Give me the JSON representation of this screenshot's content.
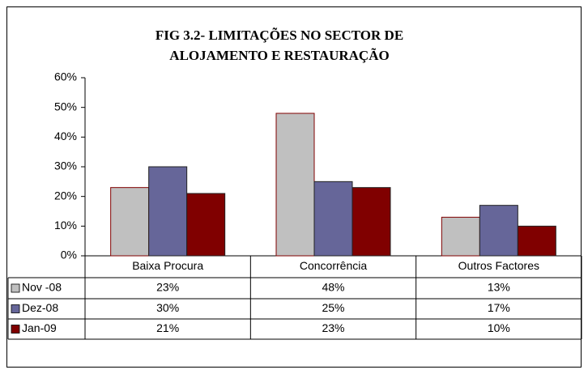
{
  "chart_data": {
    "type": "bar",
    "title": [
      "FIG 3.2- LIMITAÇÕES NO SECTOR DE",
      "ALOJAMENTO E RESTAURAÇÃO"
    ],
    "categories": [
      "Baixa Procura",
      "Concorrência",
      "Outros Factores"
    ],
    "series": [
      {
        "name": "Nov -08",
        "color": "#c0c0c0",
        "values": [
          23,
          48,
          13
        ],
        "value_labels": [
          "23%",
          "48%",
          "13%"
        ]
      },
      {
        "name": "Dez-08",
        "color": "#666699",
        "values": [
          30,
          25,
          17
        ],
        "value_labels": [
          "30%",
          "25%",
          "17%"
        ]
      },
      {
        "name": "Jan-09",
        "color": "#800000",
        "values": [
          21,
          23,
          10
        ],
        "value_labels": [
          "21%",
          "23%",
          "10%"
        ]
      }
    ],
    "ylim": [
      0,
      60
    ],
    "yticks": [
      {
        "value": 0,
        "label": "0%"
      },
      {
        "value": 10,
        "label": "10%"
      },
      {
        "value": 20,
        "label": "20%"
      },
      {
        "value": 30,
        "label": "30%"
      },
      {
        "value": 40,
        "label": "40%"
      },
      {
        "value": 50,
        "label": "50%"
      },
      {
        "value": 60,
        "label": "60%"
      }
    ],
    "grid": false
  }
}
